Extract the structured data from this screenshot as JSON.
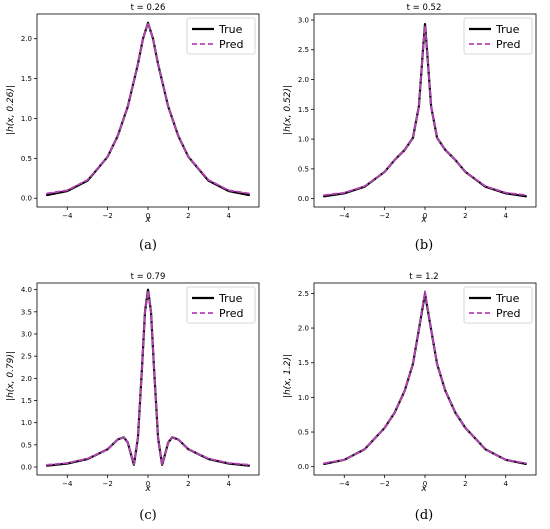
{
  "figure": {
    "panels": [
      {
        "title": "t = 0.26",
        "ylabel": "|h(x, 0.26)|",
        "xlabel": "x",
        "caption": "(a)"
      },
      {
        "title": "t = 0.52",
        "ylabel": "|h(x, 0.52)|",
        "xlabel": "x",
        "caption": "(b)"
      },
      {
        "title": "t = 0.79",
        "ylabel": "|h(x, 0.79)|",
        "xlabel": "x",
        "caption": "(c)"
      },
      {
        "title": "t = 1.2",
        "ylabel": "|h(x, 1.2)|",
        "xlabel": "x",
        "caption": "(d)"
      }
    ]
  },
  "chart_data": [
    {
      "type": "line",
      "title": "t = 0.26",
      "xlabel": "x",
      "ylabel": "|h(x, 0.26)|",
      "xlim": [
        -5.5,
        5.5
      ],
      "ylim": [
        -0.11,
        2.31
      ],
      "xticks": [
        -4,
        -2,
        0,
        2,
        4
      ],
      "yticks": [
        0.0,
        0.5,
        1.0,
        1.5,
        2.0
      ],
      "ytick_labels": [
        "0.0",
        "0.5",
        "1.0",
        "1.5",
        "2.0"
      ],
      "legend": "top-right",
      "x": [
        -5,
        -4,
        -3,
        -2,
        -1.5,
        -1,
        -0.5,
        -0.25,
        0,
        0.25,
        0.5,
        1,
        1.5,
        2,
        3,
        4,
        5
      ],
      "series": [
        {
          "name": "True",
          "color": "#000000",
          "style": "solid",
          "values": [
            0.04,
            0.09,
            0.22,
            0.52,
            0.78,
            1.15,
            1.68,
            2.0,
            2.2,
            2.0,
            1.68,
            1.15,
            0.78,
            0.52,
            0.22,
            0.09,
            0.04
          ]
        },
        {
          "name": "Pred",
          "color": "#b845b8",
          "style": "dashed",
          "values": [
            0.06,
            0.1,
            0.23,
            0.52,
            0.78,
            1.15,
            1.68,
            2.0,
            2.2,
            2.0,
            1.68,
            1.15,
            0.78,
            0.52,
            0.23,
            0.1,
            0.06
          ]
        }
      ]
    },
    {
      "type": "line",
      "title": "t = 0.52",
      "xlabel": "x",
      "ylabel": "|h(x, 0.52)|",
      "xlim": [
        -5.5,
        5.5
      ],
      "ylim": [
        -0.14,
        3.1
      ],
      "xticks": [
        -4,
        -2,
        0,
        2,
        4
      ],
      "yticks": [
        0.0,
        0.5,
        1.0,
        1.5,
        2.0,
        2.5,
        3.0
      ],
      "ytick_labels": [
        "0.0",
        "0.5",
        "1.0",
        "1.5",
        "2.0",
        "2.5",
        "3.0"
      ],
      "legend": "top-right",
      "x": [
        -5,
        -4,
        -3,
        -2,
        -1.5,
        -1,
        -0.6,
        -0.3,
        -0.1,
        0,
        0.1,
        0.3,
        0.6,
        1,
        1.5,
        2,
        3,
        4,
        5
      ],
      "series": [
        {
          "name": "True",
          "color": "#000000",
          "style": "solid",
          "values": [
            0.04,
            0.09,
            0.2,
            0.45,
            0.65,
            0.82,
            1.02,
            1.55,
            2.5,
            2.93,
            2.5,
            1.55,
            1.02,
            0.82,
            0.65,
            0.45,
            0.2,
            0.09,
            0.04
          ]
        },
        {
          "name": "Pred",
          "color": "#b845b8",
          "style": "dashed",
          "values": [
            0.06,
            0.1,
            0.21,
            0.45,
            0.65,
            0.82,
            1.02,
            1.55,
            2.5,
            2.9,
            2.5,
            1.55,
            1.02,
            0.82,
            0.65,
            0.45,
            0.21,
            0.1,
            0.06
          ]
        }
      ]
    },
    {
      "type": "line",
      "title": "t = 0.79",
      "xlabel": "x",
      "ylabel": "|h(x, 0.79)|",
      "xlim": [
        -5.5,
        5.5
      ],
      "ylim": [
        -0.18,
        4.15
      ],
      "xticks": [
        -4,
        -2,
        0,
        2,
        4
      ],
      "yticks": [
        0.0,
        0.5,
        1.0,
        1.5,
        2.0,
        2.5,
        3.0,
        3.5,
        4.0
      ],
      "ytick_labels": [
        "0.0",
        "0.5",
        "1.0",
        "1.5",
        "2.0",
        "2.5",
        "3.0",
        "3.5",
        "4.0"
      ],
      "legend": "top-right",
      "x": [
        -5,
        -4,
        -3,
        -2,
        -1.5,
        -1.2,
        -1.0,
        -0.85,
        -0.7,
        -0.5,
        -0.3,
        -0.15,
        0,
        0.15,
        0.3,
        0.5,
        0.7,
        0.85,
        1.0,
        1.2,
        1.5,
        2,
        3,
        4,
        5
      ],
      "series": [
        {
          "name": "True",
          "color": "#000000",
          "style": "solid",
          "values": [
            0.03,
            0.08,
            0.18,
            0.4,
            0.62,
            0.67,
            0.55,
            0.3,
            0.05,
            0.65,
            2.2,
            3.5,
            4.0,
            3.5,
            2.2,
            0.65,
            0.05,
            0.3,
            0.55,
            0.67,
            0.62,
            0.4,
            0.18,
            0.08,
            0.03
          ]
        },
        {
          "name": "Pred",
          "color": "#b845b8",
          "style": "dashed",
          "values": [
            0.05,
            0.09,
            0.19,
            0.4,
            0.62,
            0.67,
            0.55,
            0.3,
            0.06,
            0.65,
            2.2,
            3.5,
            3.97,
            3.5,
            2.2,
            0.65,
            0.06,
            0.3,
            0.55,
            0.67,
            0.62,
            0.4,
            0.19,
            0.09,
            0.05
          ]
        }
      ]
    },
    {
      "type": "line",
      "title": "t = 1.2",
      "xlabel": "x",
      "ylabel": "|h(x, 1.2)|",
      "xlim": [
        -5.5,
        5.5
      ],
      "ylim": [
        -0.12,
        2.65
      ],
      "xticks": [
        -4,
        -2,
        0,
        2,
        4
      ],
      "yticks": [
        0.0,
        0.5,
        1.0,
        1.5,
        2.0,
        2.5
      ],
      "ytick_labels": [
        "0.0",
        "0.5",
        "1.0",
        "1.5",
        "2.0",
        "2.5"
      ],
      "legend": "top-right",
      "x": [
        -5,
        -4,
        -3,
        -2,
        -1.5,
        -1,
        -0.6,
        -0.3,
        0,
        0.3,
        0.6,
        1,
        1.5,
        2,
        3,
        4,
        5
      ],
      "series": [
        {
          "name": "True",
          "color": "#000000",
          "style": "solid",
          "values": [
            0.04,
            0.1,
            0.25,
            0.56,
            0.78,
            1.1,
            1.48,
            1.98,
            2.5,
            1.98,
            1.48,
            1.1,
            0.78,
            0.56,
            0.25,
            0.1,
            0.04
          ]
        },
        {
          "name": "Pred",
          "color": "#b845b8",
          "style": "dashed",
          "values": [
            0.05,
            0.1,
            0.25,
            0.56,
            0.78,
            1.1,
            1.48,
            1.98,
            2.53,
            1.98,
            1.48,
            1.1,
            0.78,
            0.56,
            0.25,
            0.1,
            0.05
          ]
        }
      ]
    }
  ]
}
